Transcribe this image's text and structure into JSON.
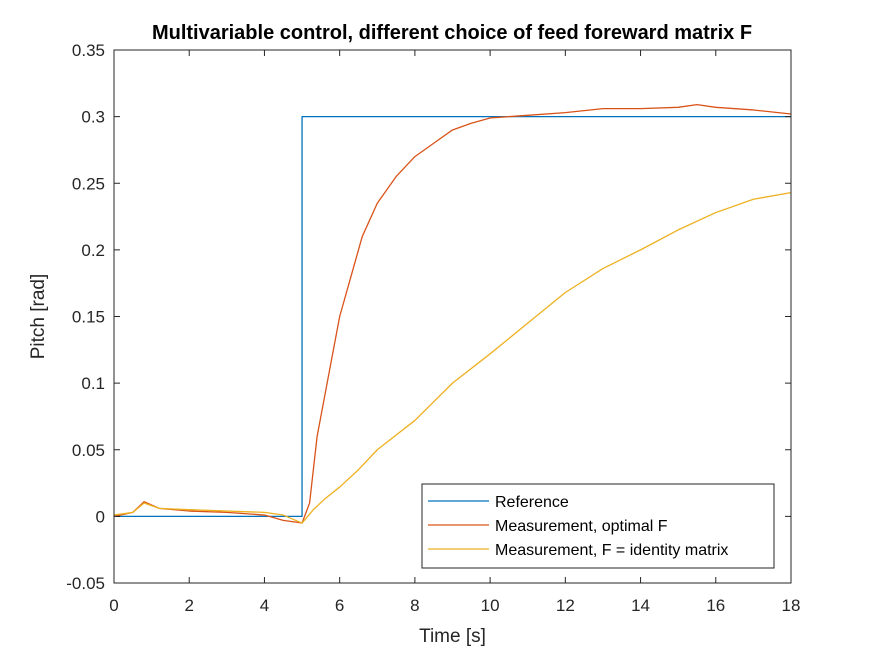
{
  "chart_data": {
    "type": "line",
    "title": "Multivariable control, different choice of feed foreward matrix F",
    "xlabel": "Time [s]",
    "ylabel": "Pitch [rad]",
    "xlim": [
      0,
      18
    ],
    "ylim": [
      -0.05,
      0.35
    ],
    "xticks": [
      "0",
      "2",
      "4",
      "6",
      "8",
      "10",
      "12",
      "14",
      "16",
      "18"
    ],
    "yticks": [
      "-0.05",
      "0",
      "0.05",
      "0.1",
      "0.15",
      "0.2",
      "0.25",
      "0.3",
      "0.35"
    ],
    "grid": false,
    "legend_position": "bottom-right",
    "series": [
      {
        "name": "Reference",
        "color": "#0072BD",
        "x": [
          0,
          5,
          5,
          18
        ],
        "y": [
          0,
          0,
          0.3,
          0.3
        ]
      },
      {
        "name": "Measurement, optimal F",
        "color": "#D95319",
        "x": [
          0,
          0.5,
          0.8,
          1.2,
          2,
          3,
          4,
          4.5,
          5,
          5.2,
          5.4,
          5.6,
          5.8,
          6,
          6.3,
          6.6,
          7,
          7.5,
          8,
          8.5,
          9,
          9.5,
          10,
          11,
          12,
          13,
          14,
          15,
          15.5,
          16,
          17,
          18
        ],
        "y": [
          0,
          0.003,
          0.011,
          0.006,
          0.004,
          0.003,
          0.001,
          -0.003,
          -0.005,
          0.01,
          0.06,
          0.09,
          0.12,
          0.15,
          0.18,
          0.21,
          0.235,
          0.255,
          0.27,
          0.28,
          0.29,
          0.295,
          0.299,
          0.301,
          0.303,
          0.306,
          0.306,
          0.307,
          0.309,
          0.307,
          0.305,
          0.302
        ]
      },
      {
        "name": "Measurement, F = identity matrix",
        "color": "#EDB120",
        "x": [
          0,
          0.5,
          0.8,
          1.2,
          2,
          3,
          4,
          4.5,
          5,
          5.3,
          5.6,
          6,
          6.5,
          7,
          8,
          9,
          10,
          11,
          12,
          13,
          14,
          15,
          16,
          17,
          18
        ],
        "y": [
          0.001,
          0.003,
          0.01,
          0.006,
          0.005,
          0.004,
          0.003,
          0.001,
          -0.005,
          0.005,
          0.013,
          0.022,
          0.035,
          0.05,
          0.072,
          0.1,
          0.122,
          0.145,
          0.168,
          0.186,
          0.2,
          0.215,
          0.228,
          0.238,
          0.243
        ]
      }
    ]
  }
}
